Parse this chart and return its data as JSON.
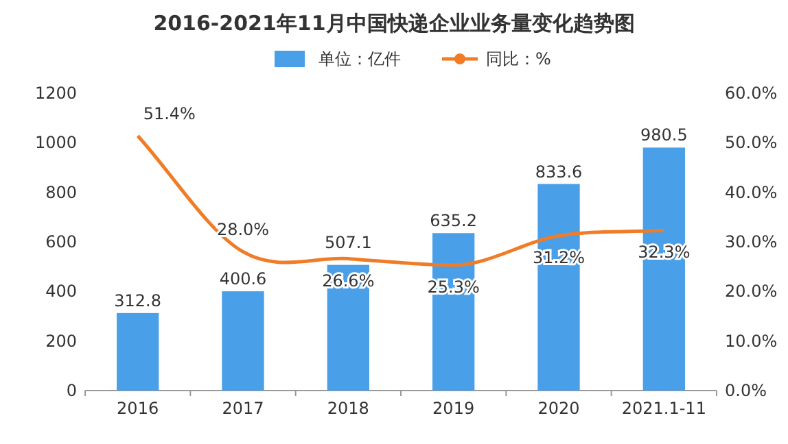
{
  "chart_data": {
    "type": "bar",
    "title": "2016-2021年11月中国快递企业业务量变化趋势图",
    "categories": [
      "2016",
      "2017",
      "2018",
      "2019",
      "2020",
      "2021.1-11"
    ],
    "series": [
      {
        "name": "单位：亿件",
        "color": "#4a9fe9",
        "values": [
          312.8,
          400.6,
          507.1,
          635.2,
          833.6,
          980.5
        ],
        "value_labels": [
          "312.8",
          "400.6",
          "507.1",
          "635.2",
          "833.6",
          "980.5"
        ]
      },
      {
        "name": "同比：%",
        "type": "line",
        "axis": "y2",
        "color": "#f07c28",
        "values": [
          51.4,
          28.0,
          26.6,
          25.3,
          31.2,
          32.3
        ],
        "value_labels": [
          "51.4%",
          "28.0%",
          "26.6%",
          "25.3%",
          "31.2%",
          "32.3%"
        ]
      }
    ],
    "ylim": [
      0,
      1200
    ],
    "yticks": [
      0,
      200,
      400,
      600,
      800,
      1000,
      1200
    ],
    "y2lim": [
      0,
      60
    ],
    "y2ticks": [
      {
        "value": 0,
        "label": "0.0%"
      },
      {
        "value": 10,
        "label": "10.0%"
      },
      {
        "value": 20,
        "label": "20.0%"
      },
      {
        "value": 30,
        "label": "30.0%"
      },
      {
        "value": 40,
        "label": "40.0%"
      },
      {
        "value": 50,
        "label": "50.0%"
      },
      {
        "value": 60,
        "label": "60.0%"
      }
    ],
    "legend": "top",
    "grid": false,
    "marker": "none",
    "line_style": "solid"
  }
}
